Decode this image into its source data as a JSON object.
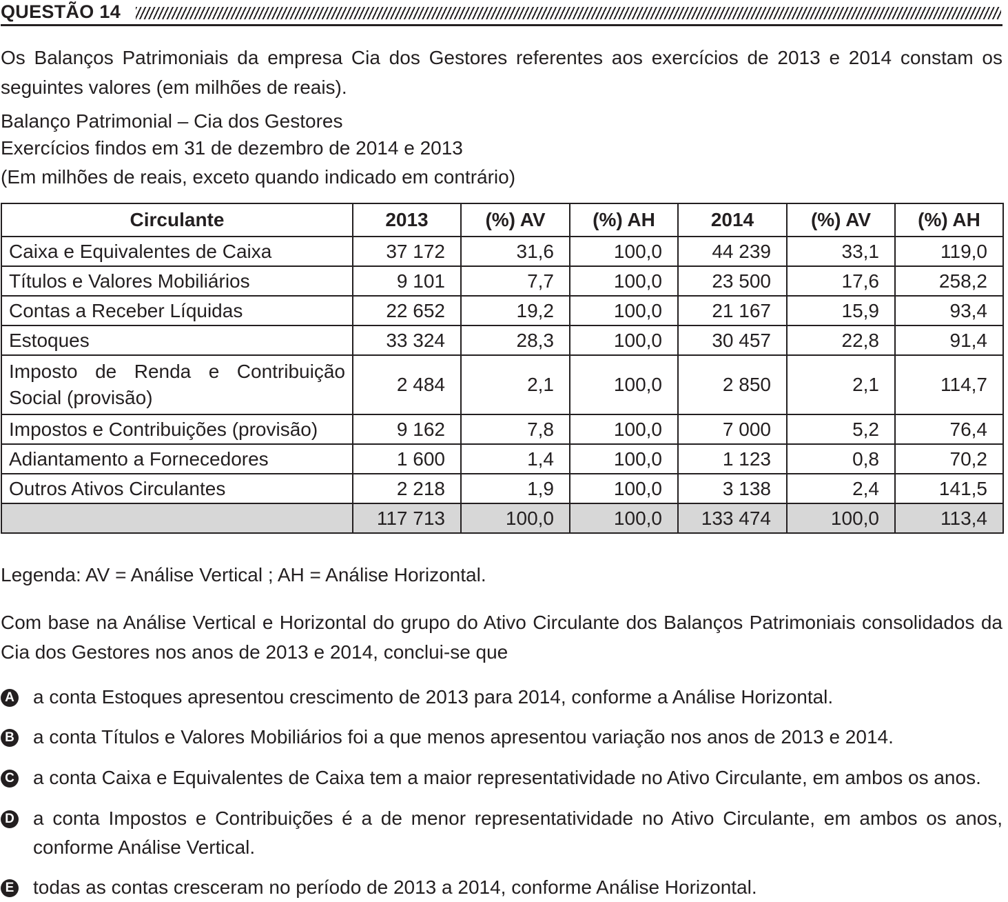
{
  "header": {
    "title": "QUESTÃO 14"
  },
  "intro": "Os Balanços Patrimoniais  da empresa Cia dos Gestores referentes aos exercícios de 2013 e 2014 constam os seguintes valores (em milhões de reais).",
  "statement": {
    "line1": "Balanço Patrimonial – Cia dos Gestores",
    "line2": "Exercícios findos em 31 de dezembro de 2014 e 2013",
    "line3": "(Em milhões de reais, exceto quando indicado em contrário)"
  },
  "table": {
    "headers": [
      "Circulante",
      "2013",
      "(%) AV",
      "(%) AH",
      "2014",
      "(%) AV",
      "(%) AH"
    ],
    "rows": [
      {
        "label": "Caixa e Equivalentes de Caixa",
        "v2013": "37 172",
        "av2013": "31,6",
        "ah2013": "100,0",
        "v2014": "44 239",
        "av2014": "33,1",
        "ah2014": "119,0"
      },
      {
        "label": "Títulos e Valores Mobiliários",
        "v2013": "9 101",
        "av2013": "7,7",
        "ah2013": "100,0",
        "v2014": "23 500",
        "av2014": "17,6",
        "ah2014": "258,2"
      },
      {
        "label": "Contas a Receber Líquidas",
        "v2013": "22 652",
        "av2013": "19,2",
        "ah2013": "100,0",
        "v2014": "21 167",
        "av2014": "15,9",
        "ah2014": "93,4"
      },
      {
        "label": "Estoques",
        "v2013": "33 324",
        "av2013": "28,3",
        "ah2013": "100,0",
        "v2014": "30 457",
        "av2014": "22,8",
        "ah2014": "91,4"
      },
      {
        "label_line1": "Imposto de Renda e Contribuição",
        "label_line2": "Social (provisão)",
        "v2013": "2 484",
        "av2013": "2,1",
        "ah2013": "100,0",
        "v2014": "2 850",
        "av2014": "2,1",
        "ah2014": "114,7"
      },
      {
        "label": "Impostos e Contribuições (provisão)",
        "v2013": "9 162",
        "av2013": "7,8",
        "ah2013": "100,0",
        "v2014": "7 000",
        "av2014": "5,2",
        "ah2014": "76,4"
      },
      {
        "label": "Adiantamento a Fornecedores",
        "v2013": "1 600",
        "av2013": "1,4",
        "ah2013": "100,0",
        "v2014": "1 123",
        "av2014": "0,8",
        "ah2014": "70,2"
      },
      {
        "label": "Outros Ativos Circulantes",
        "v2013": "2 218",
        "av2013": "1,9",
        "ah2013": "100,0",
        "v2014": "3 138",
        "av2014": "2,4",
        "ah2014": "141,5"
      }
    ],
    "total": {
      "label": "",
      "v2013": "117 713",
      "av2013": "100,0",
      "ah2013": "100,0",
      "v2014": "133 474",
      "av2014": "100,0",
      "ah2014": "113,4"
    }
  },
  "legend": "Legenda: AV = Análise Vertical ; AH = Análise Horizontal.",
  "question": "Com base na Análise Vertical e Horizontal do grupo do Ativo Circulante dos Balanços Patrimoniais consolidados da Cia dos Gestores nos anos de 2013 e 2014, conclui-se que",
  "options": [
    {
      "letter": "A",
      "text": "a conta Estoques apresentou crescimento de 2013 para 2014, conforme a Análise Horizontal."
    },
    {
      "letter": "B",
      "text": "a conta Títulos e Valores Mobiliários foi a que menos apresentou variação nos anos de 2013 e 2014."
    },
    {
      "letter": "C",
      "text": "a conta Caixa e Equivalentes de Caixa tem a maior representatividade no Ativo Circulante, em ambos os anos."
    },
    {
      "letter": "D",
      "text": "a conta Impostos e Contribuições é a de menor representatividade no Ativo Circulante, em ambos os anos, conforme Análise Vertical."
    },
    {
      "letter": "E",
      "text": "todas as contas cresceram no período de 2013 a 2014, conforme Análise Horizontal."
    }
  ]
}
